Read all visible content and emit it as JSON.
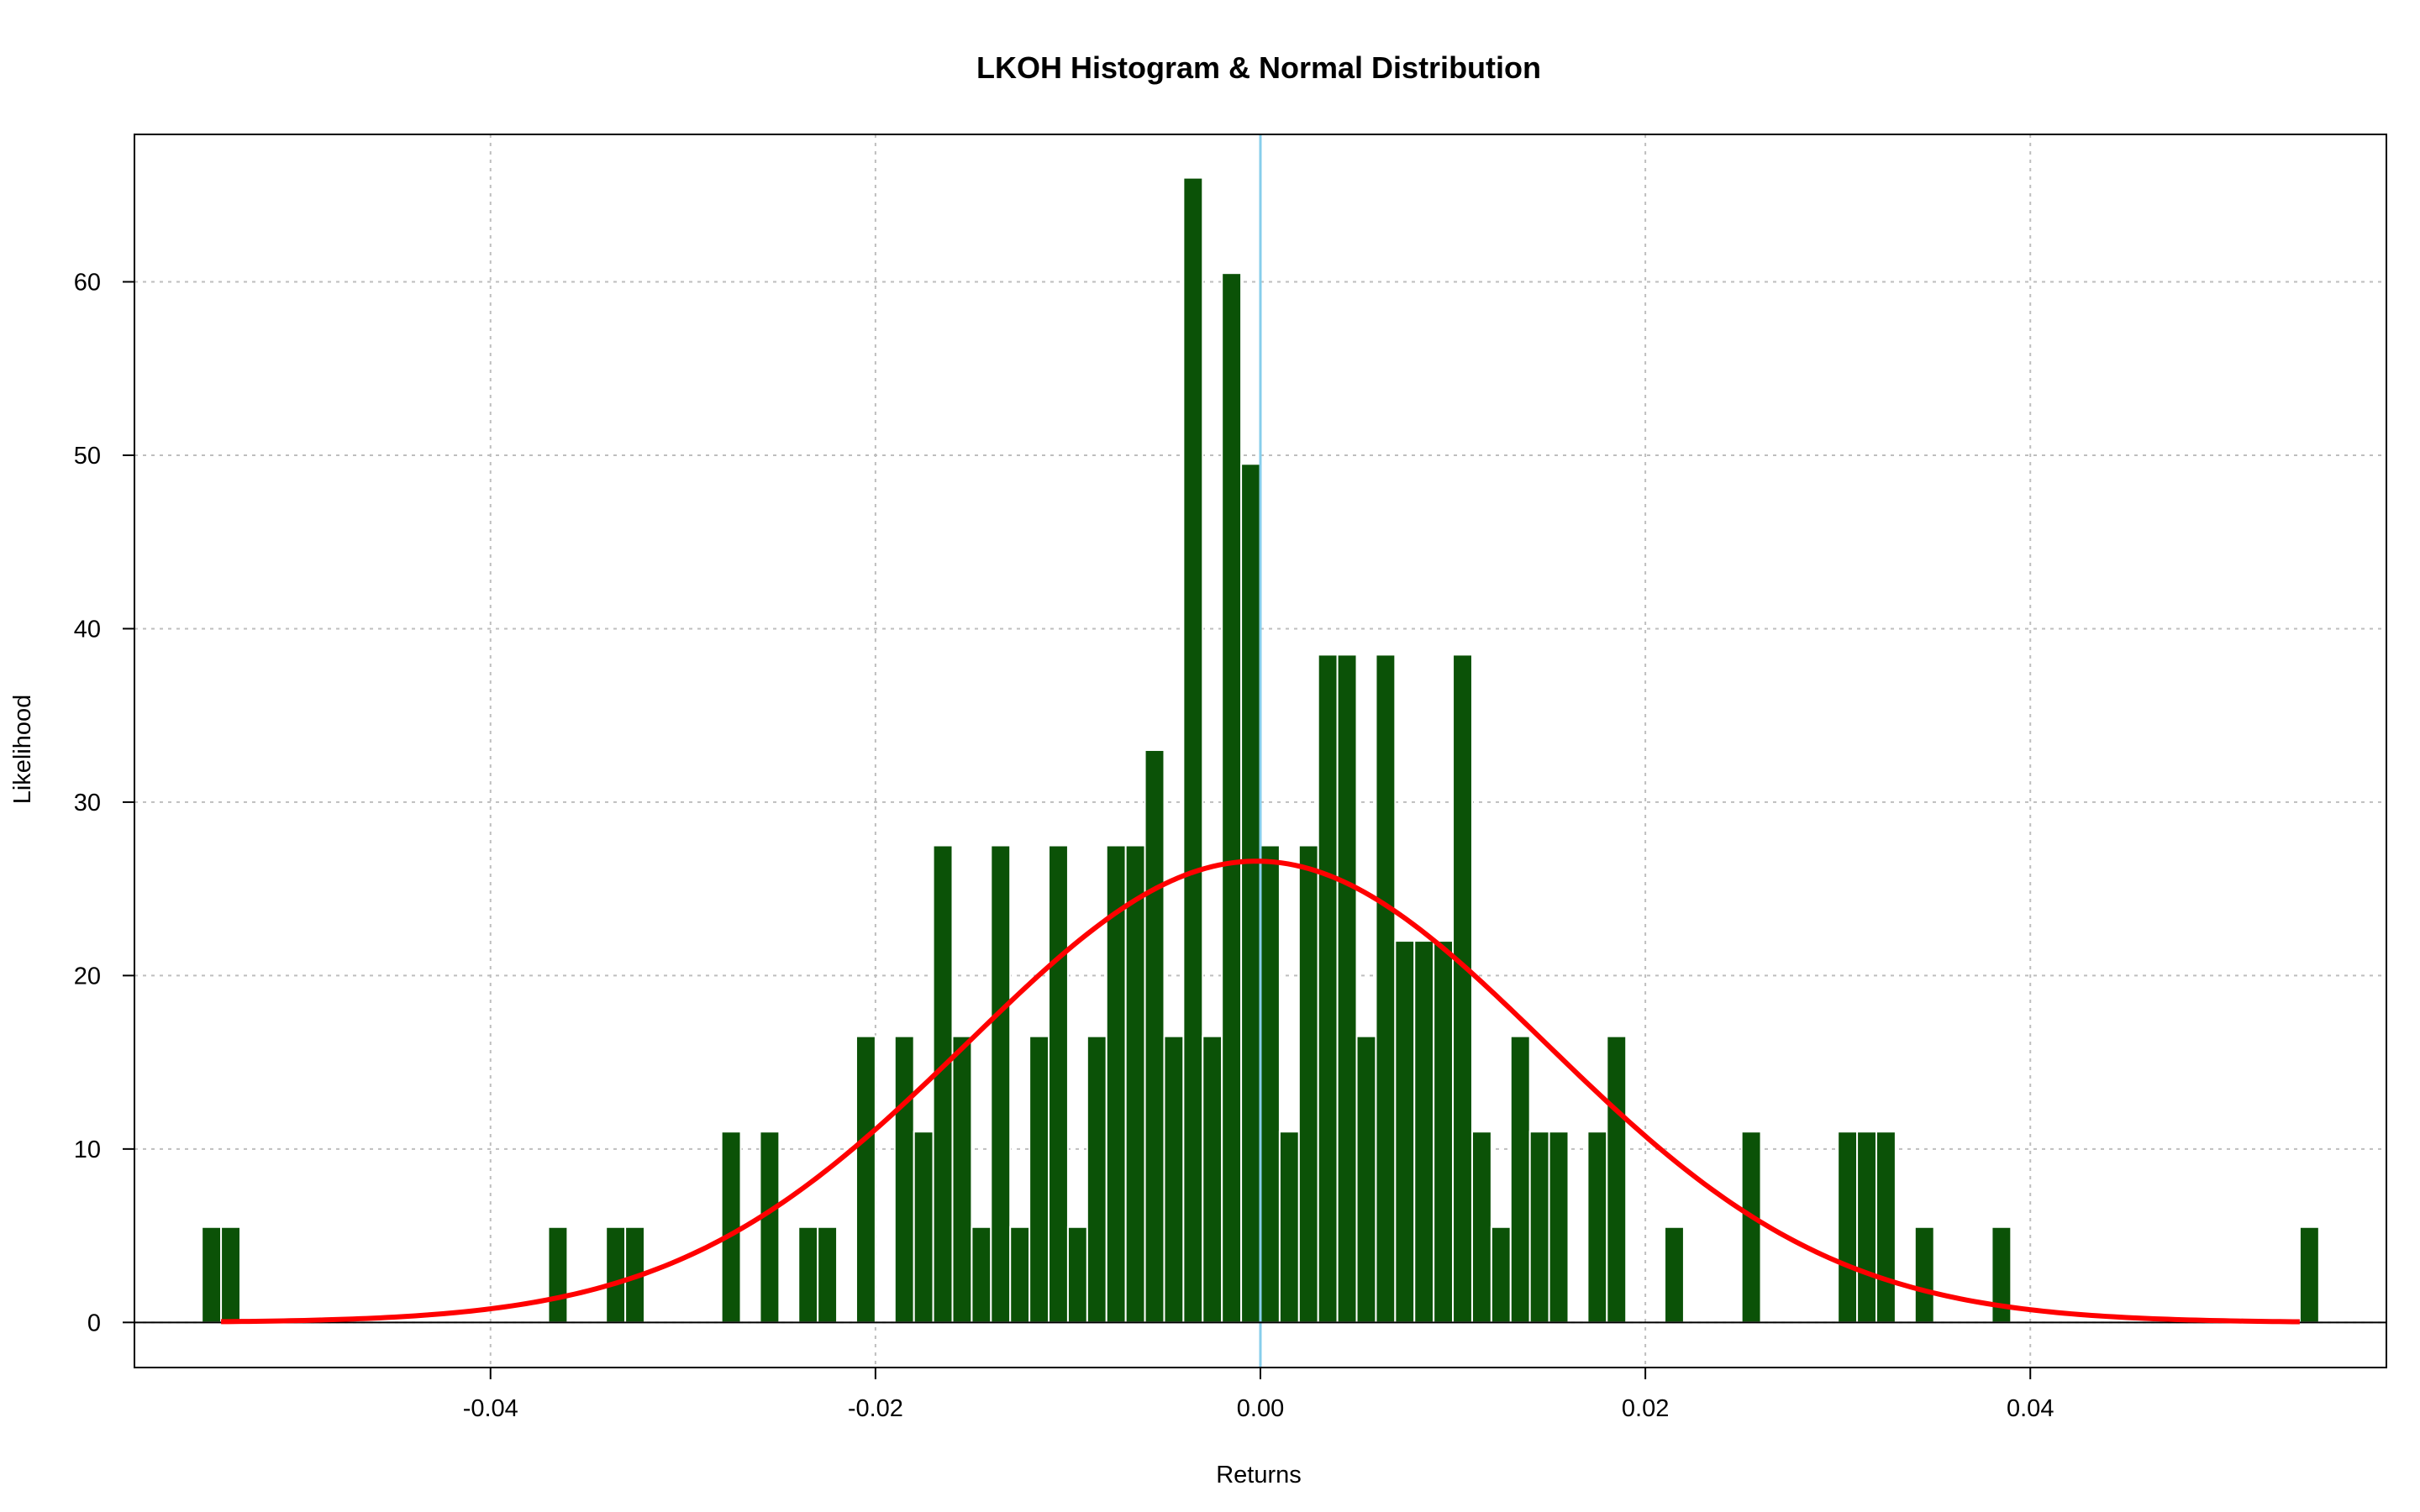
{
  "chart_data": {
    "type": "bar",
    "title": "LKOH Histogram & Normal Distribution",
    "xlabel": "Returns",
    "ylabel": "Likelihood",
    "xlim": [
      -0.0585,
      0.0585
    ],
    "ylim": [
      -2.6,
      68.5
    ],
    "xticks": [
      -0.04,
      -0.02,
      0.0,
      0.02,
      0.04
    ],
    "xtick_labels": [
      "-0.04",
      "-0.02",
      "0.00",
      "0.02",
      "0.04"
    ],
    "yticks": [
      0,
      10,
      20,
      30,
      40,
      50,
      60
    ],
    "ytick_labels": [
      "0",
      "10",
      "20",
      "30",
      "40",
      "50",
      "60"
    ],
    "grid": true,
    "bin_width": 0.001,
    "bars": [
      {
        "x": -0.0545,
        "y": 5.5
      },
      {
        "x": -0.0535,
        "y": 5.5
      },
      {
        "x": -0.0365,
        "y": 5.5
      },
      {
        "x": -0.0335,
        "y": 5.5
      },
      {
        "x": -0.0325,
        "y": 5.5
      },
      {
        "x": -0.0275,
        "y": 11
      },
      {
        "x": -0.0255,
        "y": 11
      },
      {
        "x": -0.0235,
        "y": 5.5
      },
      {
        "x": -0.0225,
        "y": 5.5
      },
      {
        "x": -0.0205,
        "y": 16.5
      },
      {
        "x": -0.0185,
        "y": 16.5
      },
      {
        "x": -0.0175,
        "y": 11
      },
      {
        "x": -0.0165,
        "y": 27.5
      },
      {
        "x": -0.0155,
        "y": 16.5
      },
      {
        "x": -0.0145,
        "y": 5.5
      },
      {
        "x": -0.0135,
        "y": 27.5
      },
      {
        "x": -0.0125,
        "y": 5.5
      },
      {
        "x": -0.0115,
        "y": 16.5
      },
      {
        "x": -0.0105,
        "y": 27.5
      },
      {
        "x": -0.0095,
        "y": 5.5
      },
      {
        "x": -0.0085,
        "y": 16.5
      },
      {
        "x": -0.0075,
        "y": 27.5
      },
      {
        "x": -0.0065,
        "y": 27.5
      },
      {
        "x": -0.0055,
        "y": 33
      },
      {
        "x": -0.0045,
        "y": 16.5
      },
      {
        "x": -0.0035,
        "y": 66
      },
      {
        "x": -0.0025,
        "y": 16.5
      },
      {
        "x": -0.0015,
        "y": 60.5
      },
      {
        "x": -0.0005,
        "y": 49.5
      },
      {
        "x": 0.0005,
        "y": 27.5
      },
      {
        "x": 0.0015,
        "y": 11
      },
      {
        "x": 0.0025,
        "y": 27.5
      },
      {
        "x": 0.0035,
        "y": 38.5
      },
      {
        "x": 0.0045,
        "y": 38.5
      },
      {
        "x": 0.0055,
        "y": 16.5
      },
      {
        "x": 0.0065,
        "y": 38.5
      },
      {
        "x": 0.0075,
        "y": 22
      },
      {
        "x": 0.0085,
        "y": 22
      },
      {
        "x": 0.0095,
        "y": 22
      },
      {
        "x": 0.0105,
        "y": 38.5
      },
      {
        "x": 0.0115,
        "y": 11
      },
      {
        "x": 0.0125,
        "y": 5.5
      },
      {
        "x": 0.0135,
        "y": 16.5
      },
      {
        "x": 0.0145,
        "y": 11
      },
      {
        "x": 0.0155,
        "y": 11
      },
      {
        "x": 0.0175,
        "y": 11
      },
      {
        "x": 0.0185,
        "y": 16.5
      },
      {
        "x": 0.0215,
        "y": 5.5
      },
      {
        "x": 0.0255,
        "y": 11
      },
      {
        "x": 0.0305,
        "y": 11
      },
      {
        "x": 0.0315,
        "y": 11
      },
      {
        "x": 0.0325,
        "y": 11
      },
      {
        "x": 0.0345,
        "y": 5.5
      },
      {
        "x": 0.0385,
        "y": 5.5
      },
      {
        "x": 0.0545,
        "y": 5.5
      }
    ],
    "normal_curve": {
      "mean": -0.0002,
      "sd": 0.015,
      "x_range": [
        -0.054,
        0.054
      ]
    },
    "vline_x": 0.0,
    "colors": {
      "bar_fill": "#0b5207",
      "bar_border": "#ffffff",
      "curve": "#ff0000",
      "vline": "#87ceeb",
      "hline": "#000000",
      "grid": "#bebebe",
      "frame": "#000000"
    }
  }
}
